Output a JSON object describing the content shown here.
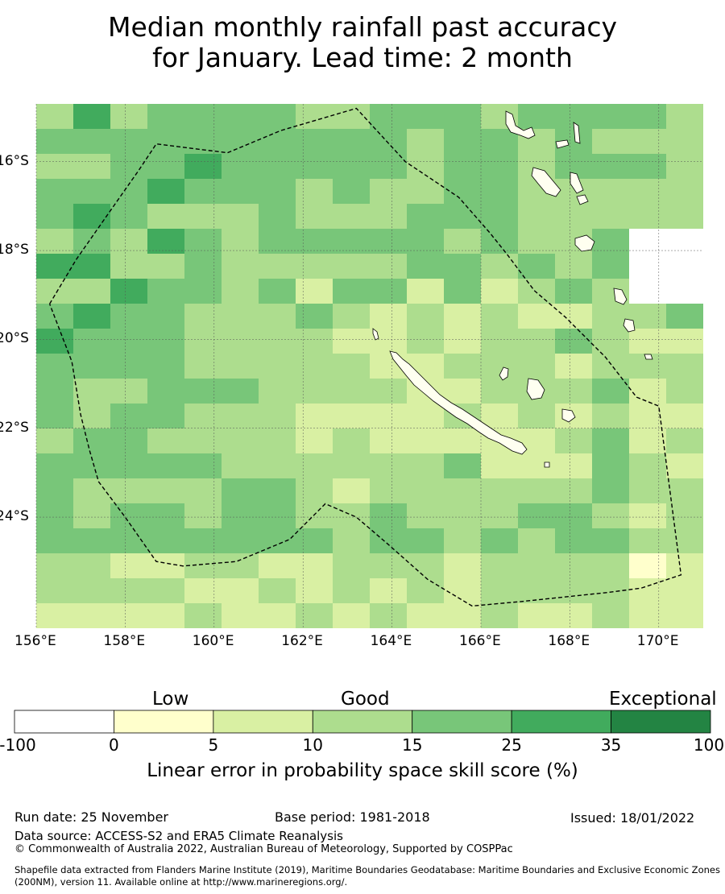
{
  "title": {
    "line1": "Median monthly rainfall past accuracy",
    "line2": "for January. Lead time: 2 month"
  },
  "map": {
    "lon_range": [
      156,
      171
    ],
    "lat_range": [
      -14.7,
      -26.5
    ],
    "x_ticks": [
      {
        "lon": 156,
        "label": "156°E"
      },
      {
        "lon": 158,
        "label": "158°E"
      },
      {
        "lon": 160,
        "label": "160°E"
      },
      {
        "lon": 162,
        "label": "162°E"
      },
      {
        "lon": 164,
        "label": "164°E"
      },
      {
        "lon": 166,
        "label": "166°E"
      },
      {
        "lon": 168,
        "label": "168°E"
      },
      {
        "lon": 170,
        "label": "170°E"
      }
    ],
    "y_ticks": [
      {
        "lat": -16,
        "label": "16°S"
      },
      {
        "lat": -18,
        "label": "18°S"
      },
      {
        "lat": -20,
        "label": "20°S"
      },
      {
        "lat": -22,
        "label": "22°S"
      },
      {
        "lat": -24,
        "label": "24°S"
      }
    ],
    "eez_boundary_points": [
      [
        156.3,
        -19.2
      ],
      [
        156.9,
        -18.2
      ],
      [
        157.6,
        -17.2
      ],
      [
        158.3,
        -16.2
      ],
      [
        158.7,
        -15.6
      ],
      [
        160.3,
        -15.8
      ],
      [
        161.5,
        -15.3
      ],
      [
        163.2,
        -14.8
      ],
      [
        164.3,
        -16.0
      ],
      [
        165.5,
        -16.8
      ],
      [
        166.2,
        -17.6
      ],
      [
        166.6,
        -18.1
      ],
      [
        167.2,
        -18.9
      ],
      [
        167.9,
        -19.5
      ],
      [
        168.8,
        -20.4
      ],
      [
        169.5,
        -21.3
      ],
      [
        170.0,
        -21.5
      ],
      [
        170.5,
        -25.3
      ],
      [
        169.6,
        -25.6
      ],
      [
        168.8,
        -25.7
      ],
      [
        166.9,
        -25.9
      ],
      [
        165.8,
        -26.0
      ],
      [
        164.8,
        -25.4
      ],
      [
        163.9,
        -24.6
      ],
      [
        163.2,
        -24.0
      ],
      [
        162.5,
        -23.7
      ],
      [
        161.7,
        -24.5
      ],
      [
        160.5,
        -25.0
      ],
      [
        159.3,
        -25.1
      ],
      [
        158.7,
        -25.0
      ],
      [
        158.0,
        -24.0
      ],
      [
        157.4,
        -23.2
      ],
      [
        157.2,
        -22.5
      ],
      [
        157.0,
        -21.7
      ],
      [
        156.8,
        -20.5
      ],
      [
        156.3,
        -19.2
      ]
    ],
    "islands_note": "New Caledonia, Vanuatu, Loyalty Islands"
  },
  "colorbar": {
    "categories": [
      {
        "label": "Low"
      },
      {
        "label": "Good"
      },
      {
        "label": "Exceptional"
      }
    ],
    "ticks": [
      "-100",
      "0",
      "5",
      "10",
      "15",
      "25",
      "35",
      "100"
    ],
    "colors": [
      "#ffffff",
      "#ffffcc",
      "#d9f0a3",
      "#addd8e",
      "#78c679",
      "#41ab5d",
      "#238443"
    ],
    "label": "Linear error in probability space skill score (%)"
  },
  "footer": {
    "run_date": "Run date: 25 November",
    "base_period": "Base period: 1981-2018",
    "issued": "Issued: 18/01/2022",
    "data_source": "Data source: ACCESS-S2 and ERA5 Climate Reanalysis",
    "copyright": "© Commonwealth of Australia 2022, Australian Bureau of Meteorology, Supported by COSPPac",
    "shapefile": "Shapefile data extracted from Flanders Marine Institute (2019), Maritime Boundaries Geodatabase: Maritime Boundaries and Exclusive Economic Zones (200NM), version 11. Available online at http://www.marineregions.org/."
  }
}
